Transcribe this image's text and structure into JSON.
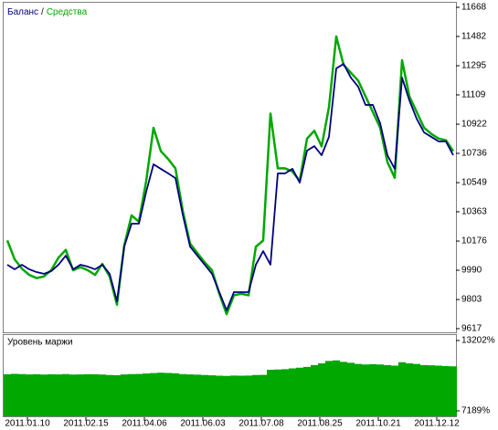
{
  "chart_data": [
    {
      "type": "line",
      "xlim": [
        0,
        62
      ],
      "ylim": [
        9617,
        11668
      ],
      "yticks": [
        11668,
        11482,
        11295,
        11109,
        10922,
        10736,
        10549,
        10363,
        10176,
        9990,
        9803,
        9617
      ],
      "legend_separator": "/",
      "series": [
        {
          "name": "Баланс",
          "color": "#000080",
          "values": [
            10025,
            9996,
            10025,
            9996,
            9978,
            9967,
            9984,
            10025,
            10083,
            9996,
            10025,
            10013,
            9996,
            10025,
            9967,
            9792,
            10141,
            10287,
            10287,
            10491,
            10666,
            10637,
            10608,
            10578,
            10345,
            10141,
            10083,
            10025,
            9967,
            9850,
            9734,
            9850,
            9850,
            9850,
            10025,
            10112,
            10025,
            10608,
            10608,
            10637,
            10549,
            10753,
            10782,
            10724,
            10841,
            11278,
            11307,
            11219,
            11161,
            11045,
            11045,
            10928,
            10724,
            10637,
            11219,
            11074,
            10957,
            10870,
            10841,
            10812,
            10812,
            10724
          ]
        },
        {
          "name": "Средства",
          "color": "#00a800",
          "values": [
            10180,
            10060,
            10000,
            9960,
            9940,
            9950,
            9990,
            10070,
            10120,
            9990,
            10010,
            9990,
            9960,
            10030,
            9950,
            9770,
            10150,
            10340,
            10300,
            10560,
            10899,
            10750,
            10700,
            10640,
            10370,
            10160,
            10100,
            10040,
            9990,
            9840,
            9710,
            9830,
            9840,
            9830,
            10140,
            10180,
            10990,
            10640,
            10640,
            10620,
            10560,
            10830,
            10880,
            10780,
            11030,
            11482,
            11300,
            11250,
            11200,
            11100,
            11000,
            10900,
            10680,
            10580,
            11330,
            11100,
            11000,
            10900,
            10860,
            10830,
            10820,
            10750
          ]
        }
      ]
    },
    {
      "type": "area",
      "title": "Уровень маржи",
      "color": "#00a800",
      "xlim": [
        0,
        62
      ],
      "ylim": [
        7189,
        13202
      ],
      "yticks": [
        {
          "value": 13202,
          "label": "13202%"
        },
        {
          "value": 7189,
          "label": "7189%"
        }
      ],
      "xticks": [
        {
          "value": 3.25,
          "label": "2011.01.10"
        },
        {
          "value": 11.25,
          "label": "2011.02.15"
        },
        {
          "value": 19.25,
          "label": "2011.04.06"
        },
        {
          "value": 27.25,
          "label": "2011.06.03"
        },
        {
          "value": 35.25,
          "label": "2011.07.08"
        },
        {
          "value": 43.25,
          "label": "2011.08.25"
        },
        {
          "value": 51.25,
          "label": "2011.10.21"
        },
        {
          "value": 59.25,
          "label": "2011.12.12"
        }
      ],
      "values": [
        10310,
        10350,
        10330,
        10300,
        10320,
        10290,
        10310,
        10300,
        10330,
        10290,
        10300,
        10320,
        10310,
        10290,
        10250,
        10230,
        10300,
        10330,
        10340,
        10380,
        10420,
        10450,
        10430,
        10400,
        10330,
        10300,
        10280,
        10250,
        10220,
        10200,
        10180,
        10210,
        10200,
        10210,
        10250,
        10260,
        10700,
        10720,
        10750,
        10820,
        10880,
        10950,
        11100,
        11250,
        11450,
        11500,
        11380,
        11300,
        11200,
        11150,
        11180,
        11150,
        11100,
        11050,
        11350,
        11250,
        11200,
        11100,
        11080,
        11050,
        11020,
        11000
      ]
    }
  ]
}
